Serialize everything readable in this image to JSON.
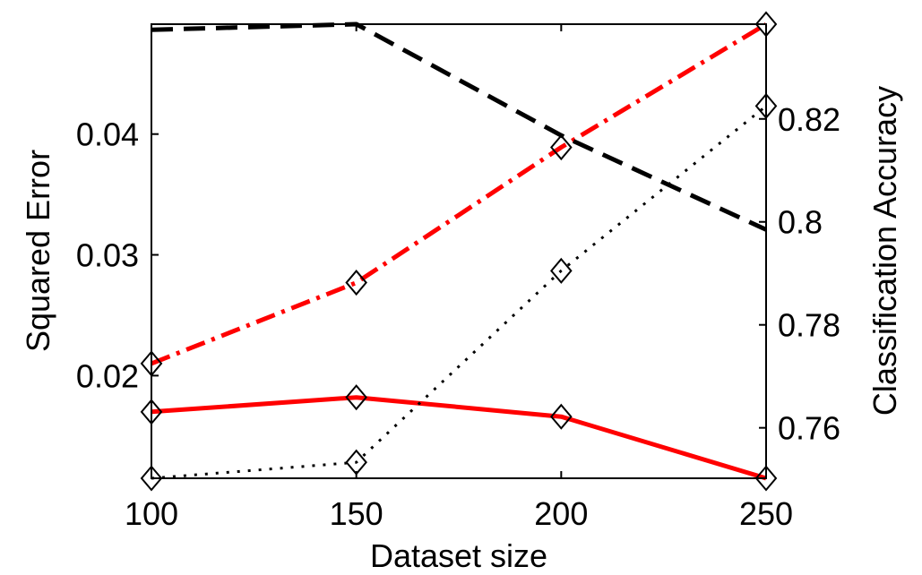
{
  "chart_data": {
    "type": "line",
    "xlabel": "Dataset size",
    "ylabel_left": "Squared Error",
    "ylabel_right": "Classification Accuracy",
    "x": [
      100,
      150,
      200,
      250
    ],
    "xlim": [
      100,
      250
    ],
    "ylim_left": [
      0.0115,
      0.0491
    ],
    "ylim_right": [
      0.7502,
      0.8384
    ],
    "xticks": [
      "100",
      "150",
      "200",
      "250"
    ],
    "yticks_left": [
      {
        "value": 0.02,
        "label": "0.02"
      },
      {
        "value": 0.03,
        "label": "0.03"
      },
      {
        "value": 0.04,
        "label": "0.04"
      }
    ],
    "yticks_right": [
      {
        "value": 0.76,
        "label": "0.76"
      },
      {
        "value": 0.78,
        "label": "0.78"
      },
      {
        "value": 0.8,
        "label": "0.8"
      },
      {
        "value": 0.82,
        "label": "0.82"
      }
    ],
    "grid": false,
    "series": [
      {
        "axis": "left",
        "color": "#ff0000",
        "style": "solid",
        "markers": true,
        "values": [
          0.017,
          0.0182,
          0.0166,
          0.0115
        ]
      },
      {
        "axis": "left",
        "color": "#ff0000",
        "style": "dashdot",
        "markers": true,
        "values": [
          0.021,
          0.0277,
          0.0389,
          0.0491
        ]
      },
      {
        "axis": "right",
        "color": "#000000",
        "style": "dotted",
        "markers": true,
        "values": [
          0.7502,
          0.7533,
          0.7905,
          0.8225
        ]
      },
      {
        "axis": "right",
        "color": "#000000",
        "style": "dashed",
        "markers": false,
        "values": [
          0.8373,
          0.8384,
          0.8168,
          0.7985
        ]
      }
    ]
  }
}
